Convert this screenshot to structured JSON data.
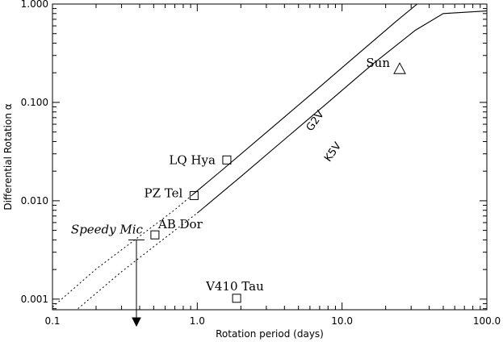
{
  "chart_data": {
    "type": "scatter",
    "title": "",
    "xlabel": "Rotation period (days)",
    "ylabel": "Differential Rotation α",
    "xscale": "log",
    "yscale": "log",
    "xlim": [
      0.1,
      100.0
    ],
    "ylim": [
      0.00078,
      1.0
    ],
    "x_ticks": [
      {
        "value": 0.1,
        "label": "0.1"
      },
      {
        "value": 1.0,
        "label": "1.0"
      },
      {
        "value": 10.0,
        "label": "10.0"
      },
      {
        "value": 100.0,
        "label": "100.0"
      }
    ],
    "y_ticks": [
      {
        "value": 0.001,
        "label": "0.001"
      },
      {
        "value": 0.01,
        "label": "0.010"
      },
      {
        "value": 0.1,
        "label": "0.100"
      },
      {
        "value": 1.0,
        "label": "1.000"
      }
    ],
    "curves": [
      {
        "name": "G2V",
        "label_at": [
          6.8,
          0.062
        ],
        "label_rotation": -55,
        "dotted": [
          [
            0.1,
            0.00083
          ],
          [
            0.2,
            0.00202
          ],
          [
            0.4,
            0.00436
          ],
          [
            0.7,
            0.0081
          ],
          [
            0.92,
            0.0114
          ]
        ],
        "solid": [
          [
            0.92,
            0.0114
          ],
          [
            1.5,
            0.0208
          ],
          [
            3.0,
            0.0495
          ],
          [
            6.0,
            0.118
          ],
          [
            12.0,
            0.284
          ],
          [
            24.0,
            0.68
          ],
          [
            33.0,
            1.0
          ]
        ]
      },
      {
        "name": "K5V",
        "label_at": [
          9.0,
          0.03
        ],
        "label_rotation": -55,
        "dotted": [
          [
            0.15,
            0.0008
          ],
          [
            0.3,
            0.0019
          ],
          [
            0.6,
            0.0042
          ],
          [
            1.0,
            0.0075
          ]
        ],
        "solid": [
          [
            1.0,
            0.0075
          ],
          [
            2.0,
            0.0176
          ],
          [
            4.0,
            0.042
          ],
          [
            8.0,
            0.1
          ],
          [
            16.0,
            0.24
          ],
          [
            32.0,
            0.54
          ],
          [
            50.0,
            0.8
          ],
          [
            100.0,
            0.85
          ]
        ]
      }
    ],
    "points": [
      {
        "name": "Sun",
        "x": 25.0,
        "y": 0.22,
        "marker": "triangle"
      },
      {
        "name": "LQ Hya",
        "x": 1.6,
        "y": 0.026,
        "marker": "square"
      },
      {
        "name": "PZ Tel",
        "x": 0.95,
        "y": 0.0113,
        "marker": "square"
      },
      {
        "name": "AB Dor",
        "x": 0.51,
        "y": 0.0045,
        "marker": "square"
      },
      {
        "name": "V410 Tau",
        "x": 1.87,
        "y": 0.00102,
        "marker": "square"
      }
    ],
    "upper_limits": [
      {
        "name": "Speedy Mic",
        "x": 0.38,
        "y": 0.004,
        "arrow": "down"
      }
    ]
  }
}
